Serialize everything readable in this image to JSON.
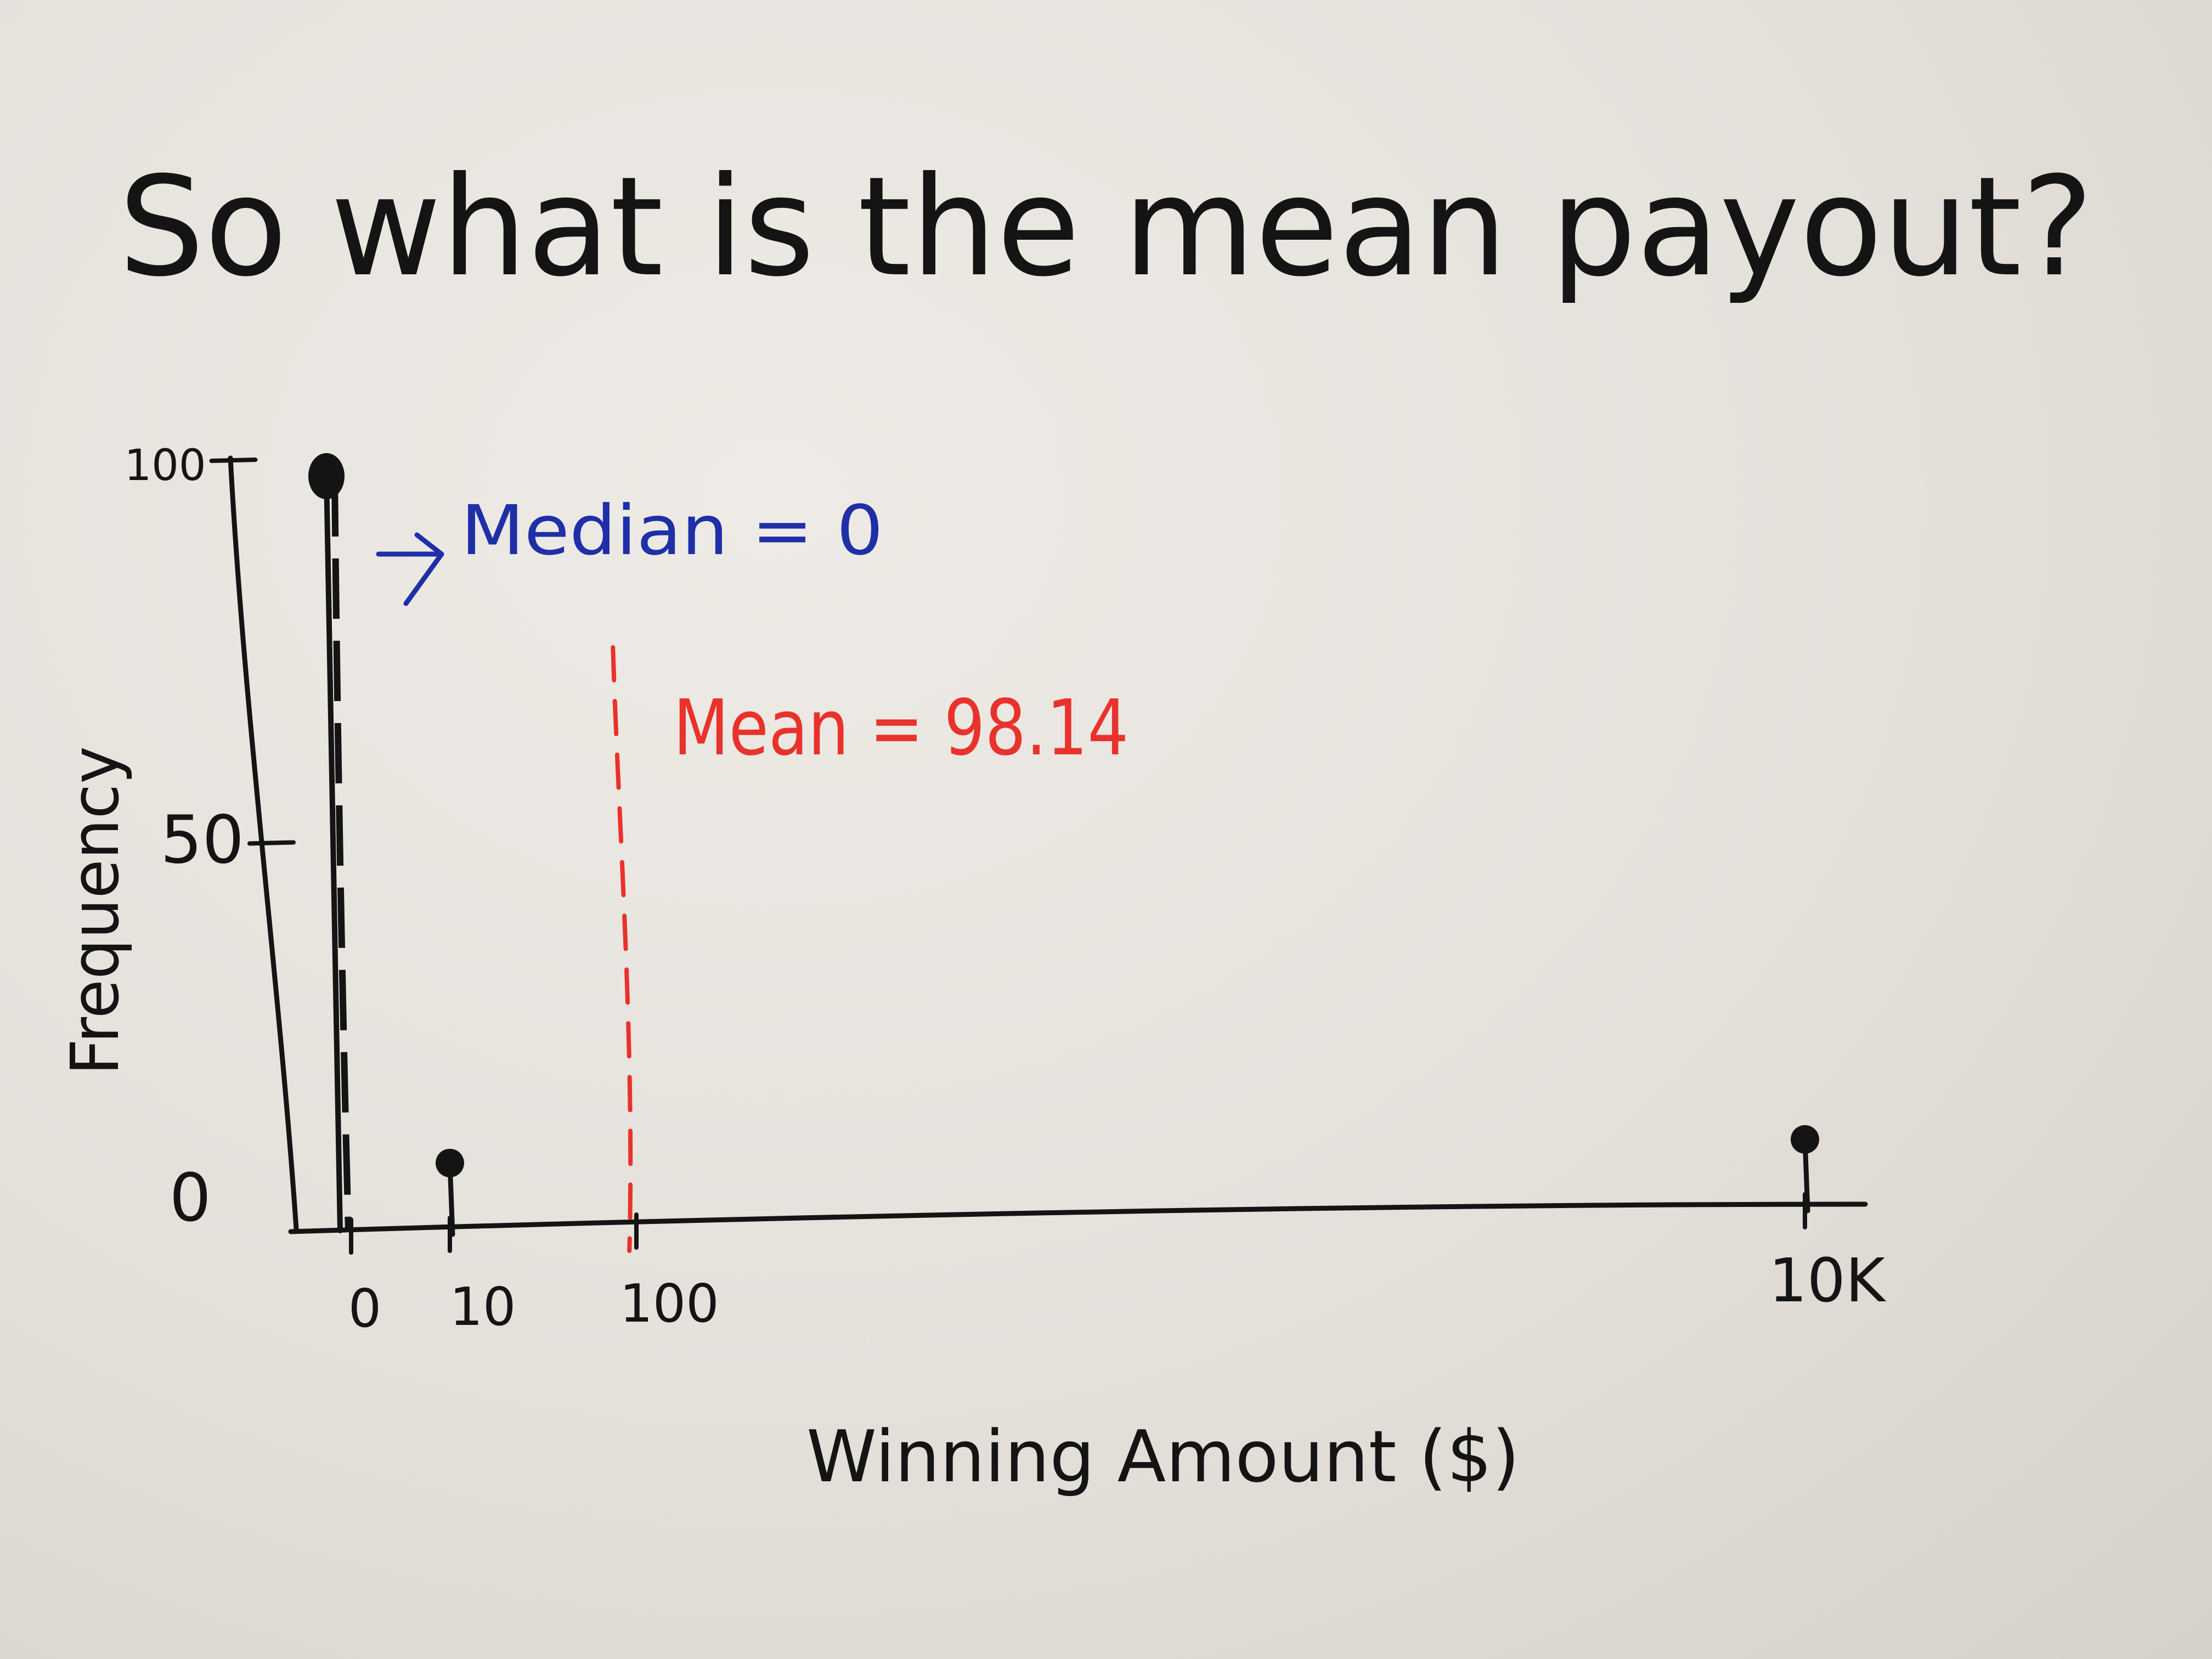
{
  "chart_data": {
    "type": "scatter",
    "style": "hand-drawn stem plot",
    "title": "So what is the mean payout?",
    "xlabel": "Winning Amount ($)",
    "ylabel": "Frequency",
    "x_ticks": [
      "0",
      "10",
      "100",
      "10K"
    ],
    "y_ticks": [
      "0",
      "50",
      "100"
    ],
    "ylim": [
      0,
      100
    ],
    "grid": false,
    "series": [
      {
        "points": [
          {
            "x": "0",
            "y": 98
          },
          {
            "x": "10",
            "y": 1
          },
          {
            "x": "10K",
            "y": 1
          }
        ]
      }
    ],
    "annotations": [
      {
        "id": "median",
        "text": "Median = 0",
        "at_x": "0",
        "color": "#1f2fa8"
      },
      {
        "id": "mean",
        "text": "Mean = 98.14",
        "at_x": 98.14,
        "color": "#e8322b"
      }
    ],
    "colors": {
      "ink": "#141414",
      "median": "#1f2fa8",
      "mean": "#e8322b",
      "paper": "#e6e2dc"
    }
  }
}
